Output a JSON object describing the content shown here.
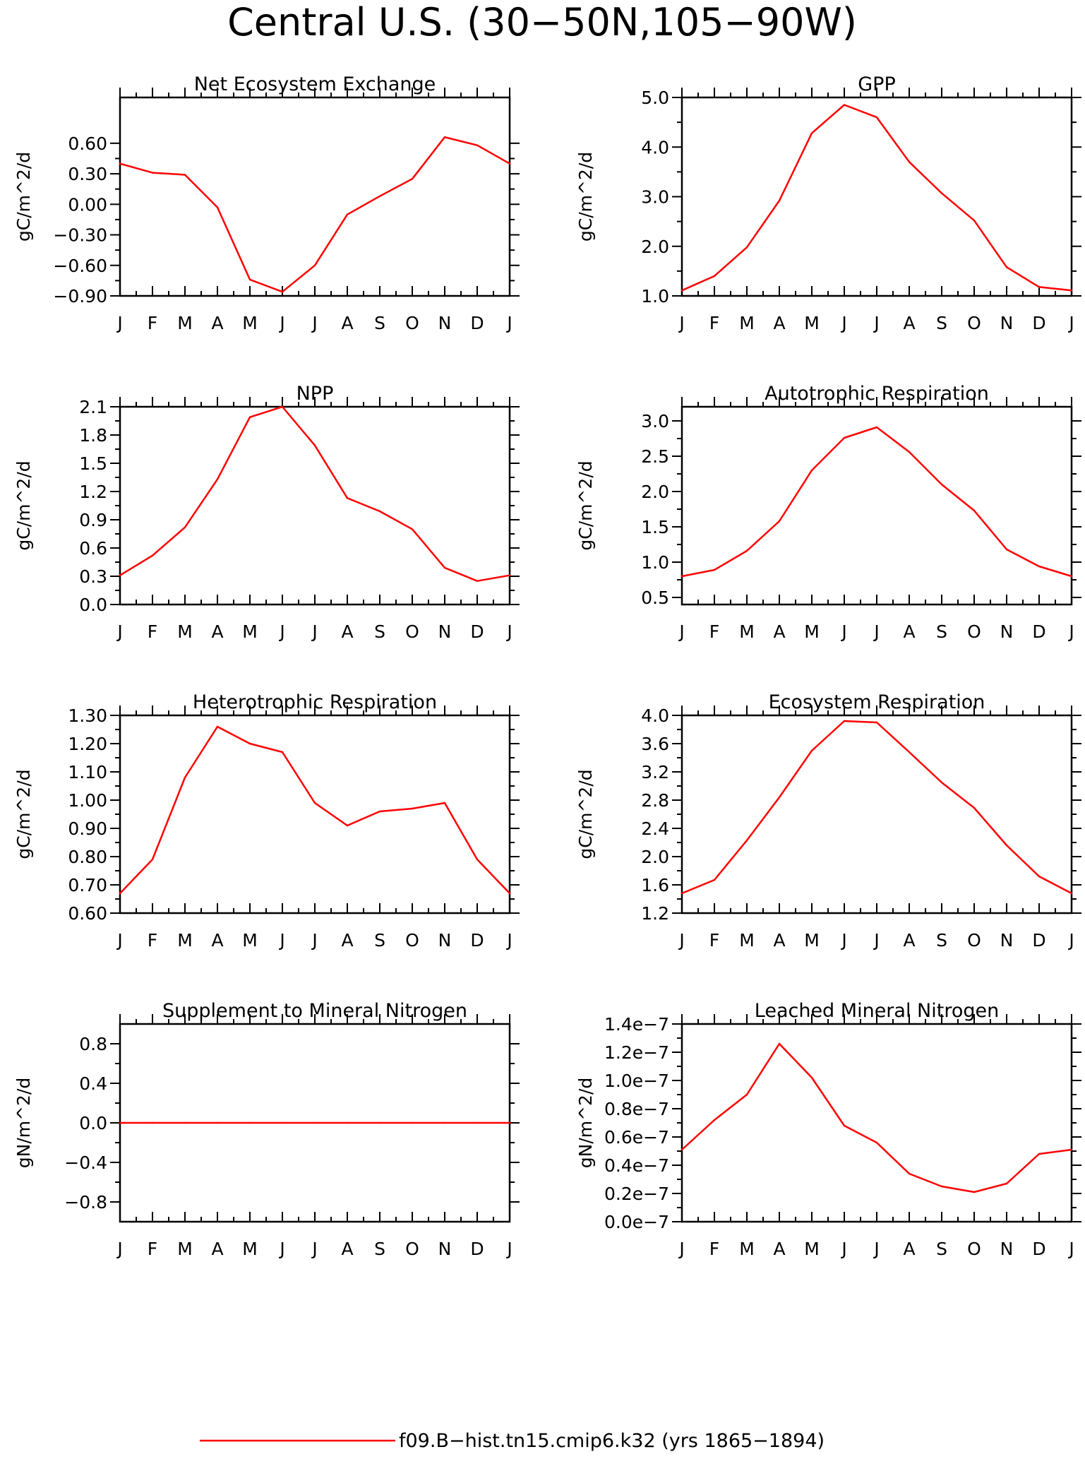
{
  "title": "Central U.S. (30−50N,105−90W)",
  "line_color": "#ff0000",
  "legend": {
    "label": "f09.B−hist.tn15.cmip6.k32 (yrs 1865−1894)",
    "color": "#ff0000"
  },
  "chart_data": [
    {
      "type": "line",
      "title": "Net Ecosystem Exchange",
      "ylabel": "gC/m^2/d",
      "categories": [
        "J",
        "F",
        "M",
        "A",
        "M",
        "J",
        "J",
        "A",
        "S",
        "O",
        "N",
        "D",
        "J"
      ],
      "ylim": [
        -0.9,
        1.05
      ],
      "yticks": [
        -0.9,
        -0.6,
        -0.3,
        0.0,
        0.3,
        0.6
      ],
      "ytick_labels": [
        "−0.90",
        "−0.60",
        "−0.30",
        "0.00",
        "0.30",
        "0.60"
      ],
      "series": [
        {
          "values": [
            0.4,
            0.31,
            0.29,
            -0.03,
            -0.74,
            -0.86,
            -0.6,
            -0.1,
            0.08,
            0.25,
            0.66,
            0.58,
            0.4
          ]
        }
      ]
    },
    {
      "type": "line",
      "title": "GPP",
      "ylabel": "gC/m^2/d",
      "categories": [
        "J",
        "F",
        "M",
        "A",
        "M",
        "J",
        "J",
        "A",
        "S",
        "O",
        "N",
        "D",
        "J"
      ],
      "ylim": [
        1.0,
        5.0
      ],
      "yticks": [
        1.0,
        2.0,
        3.0,
        4.0,
        5.0
      ],
      "ytick_labels": [
        "1.0",
        "2.0",
        "3.0",
        "4.0",
        "5.0"
      ],
      "series": [
        {
          "values": [
            1.11,
            1.4,
            1.98,
            2.92,
            4.28,
            4.85,
            4.6,
            3.7,
            3.07,
            2.52,
            1.58,
            1.18,
            1.11
          ]
        }
      ]
    },
    {
      "type": "line",
      "title": "NPP",
      "ylabel": "gC/m^2/d",
      "categories": [
        "J",
        "F",
        "M",
        "A",
        "M",
        "J",
        "J",
        "A",
        "S",
        "O",
        "N",
        "D",
        "J"
      ],
      "ylim": [
        0.0,
        2.1
      ],
      "yticks": [
        0.0,
        0.3,
        0.6,
        0.9,
        1.2,
        1.5,
        1.8,
        2.1
      ],
      "ytick_labels": [
        "0.0",
        "0.3",
        "0.6",
        "0.9",
        "1.2",
        "1.5",
        "1.8",
        "2.1"
      ],
      "series": [
        {
          "values": [
            0.31,
            0.52,
            0.82,
            1.33,
            1.99,
            2.1,
            1.69,
            1.13,
            0.99,
            0.8,
            0.39,
            0.25,
            0.31
          ]
        }
      ]
    },
    {
      "type": "line",
      "title": "Autotrophic Respiration",
      "ylabel": "gC/m^2/d",
      "categories": [
        "J",
        "F",
        "M",
        "A",
        "M",
        "J",
        "J",
        "A",
        "S",
        "O",
        "N",
        "D",
        "J"
      ],
      "ylim": [
        0.4,
        3.2
      ],
      "yticks": [
        0.5,
        1.0,
        1.5,
        2.0,
        2.5,
        3.0
      ],
      "ytick_labels": [
        "0.5",
        "1.0",
        "1.5",
        "2.0",
        "2.5",
        "3.0"
      ],
      "series": [
        {
          "values": [
            0.8,
            0.89,
            1.16,
            1.58,
            2.3,
            2.76,
            2.91,
            2.56,
            2.1,
            1.73,
            1.18,
            0.94,
            0.8
          ]
        }
      ]
    },
    {
      "type": "line",
      "title": "Heterotrophic Respiration",
      "ylabel": "gC/m^2/d",
      "categories": [
        "J",
        "F",
        "M",
        "A",
        "M",
        "J",
        "J",
        "A",
        "S",
        "O",
        "N",
        "D",
        "J"
      ],
      "ylim": [
        0.6,
        1.3
      ],
      "yticks": [
        0.6,
        0.7,
        0.8,
        0.9,
        1.0,
        1.1,
        1.2,
        1.3
      ],
      "ytick_labels": [
        "0.60",
        "0.70",
        "0.80",
        "0.90",
        "1.00",
        "1.10",
        "1.20",
        "1.30"
      ],
      "series": [
        {
          "values": [
            0.67,
            0.79,
            1.08,
            1.26,
            1.2,
            1.17,
            0.99,
            0.91,
            0.96,
            0.97,
            0.99,
            0.79,
            0.67
          ]
        }
      ]
    },
    {
      "type": "line",
      "title": "Ecosystem Respiration",
      "ylabel": "gC/m^2/d",
      "categories": [
        "J",
        "F",
        "M",
        "A",
        "M",
        "J",
        "J",
        "A",
        "S",
        "O",
        "N",
        "D",
        "J"
      ],
      "ylim": [
        1.2,
        4.0
      ],
      "yticks": [
        1.2,
        1.6,
        2.0,
        2.4,
        2.8,
        3.2,
        3.6,
        4.0
      ],
      "ytick_labels": [
        "1.2",
        "1.6",
        "2.0",
        "2.4",
        "2.8",
        "3.2",
        "3.6",
        "4.0"
      ],
      "series": [
        {
          "values": [
            1.48,
            1.67,
            2.23,
            2.84,
            3.5,
            3.92,
            3.9,
            3.48,
            3.05,
            2.69,
            2.16,
            1.72,
            1.48
          ]
        }
      ]
    },
    {
      "type": "line",
      "title": "Supplement to Mineral Nitrogen",
      "ylabel": "gN/m^2/d",
      "categories": [
        "J",
        "F",
        "M",
        "A",
        "M",
        "J",
        "J",
        "A",
        "S",
        "O",
        "N",
        "D",
        "J"
      ],
      "ylim": [
        -1.0,
        1.0
      ],
      "yticks": [
        -0.8,
        -0.4,
        0.0,
        0.4,
        0.8
      ],
      "ytick_labels": [
        "−0.8",
        "−0.4",
        "0.0",
        "0.4",
        "0.8"
      ],
      "series": [
        {
          "values": [
            0,
            0,
            0,
            0,
            0,
            0,
            0,
            0,
            0,
            0,
            0,
            0,
            0
          ]
        }
      ]
    },
    {
      "type": "line",
      "title": "Leached Mineral Nitrogen",
      "ylabel": "gN/m^2/d",
      "categories": [
        "J",
        "F",
        "M",
        "A",
        "M",
        "J",
        "J",
        "A",
        "S",
        "O",
        "N",
        "D",
        "J"
      ],
      "ylim": [
        0.0,
        1.4e-07
      ],
      "yticks": [
        0.0,
        2e-08,
        4e-08,
        6e-08,
        8e-08,
        1e-07,
        1.2e-07,
        1.4e-07
      ],
      "ytick_labels": [
        "0.0e−7",
        "0.2e−7",
        "0.4e−7",
        "0.6e−7",
        "0.8e−7",
        "1.0e−7",
        "1.2e−7",
        "1.4e−7"
      ],
      "series": [
        {
          "values": [
            5.1e-08,
            7.2e-08,
            9e-08,
            1.26e-07,
            1.02e-07,
            6.8e-08,
            5.6e-08,
            3.4e-08,
            2.5e-08,
            2.1e-08,
            2.7e-08,
            4.8e-08,
            5.1e-08
          ]
        }
      ]
    }
  ]
}
